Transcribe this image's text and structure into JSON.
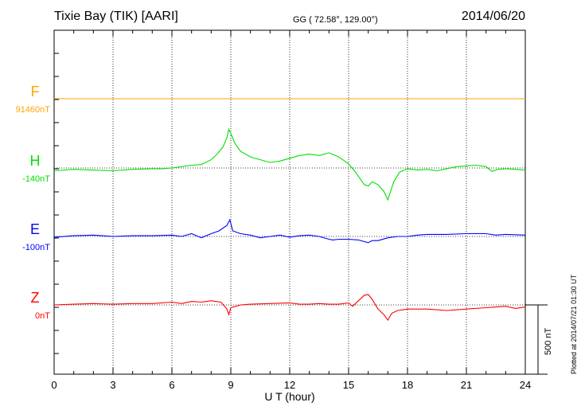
{
  "header": {
    "title": "Tixie Bay (TIK)  [AARI]",
    "coords": "GG ( 72.58°, 129.00°)",
    "date": "2014/06/20"
  },
  "side_note": "Plotted at 2014/07/21 01:30 UT",
  "scale_bar": {
    "label": "500 nT",
    "value": 500
  },
  "chart_data": {
    "type": "line",
    "title": "Tixie Bay (TIK)  [AARI]",
    "xlabel": "U T (hour)",
    "ylabel": "",
    "xlim": [
      0,
      24
    ],
    "xticks": [
      "0",
      "3",
      "6",
      "9",
      "12",
      "15",
      "18",
      "21",
      "24"
    ],
    "grid": true,
    "series": [
      {
        "name": "F",
        "baseline_label": "91460nT",
        "color": "#ffa500",
        "x": [
          0,
          24
        ],
        "y": [
          0,
          0
        ]
      },
      {
        "name": "H",
        "baseline_label": "-140nT",
        "color": "#00e000",
        "x": [
          0,
          1,
          2,
          3,
          4,
          5,
          5.5,
          6,
          6.5,
          7,
          7.5,
          8,
          8.3,
          8.6,
          8.8,
          8.9,
          9,
          9.2,
          9.5,
          10,
          10.5,
          11,
          11.5,
          12,
          12.5,
          13,
          13.5,
          14,
          14.5,
          15,
          15.3,
          15.6,
          15.8,
          16,
          16.2,
          16.5,
          16.8,
          17,
          17.3,
          17.6,
          18,
          18.5,
          19,
          19.5,
          20,
          20.5,
          21,
          21.5,
          22,
          22.3,
          22.6,
          23,
          23.5,
          24
        ],
        "y": [
          -20,
          -10,
          -15,
          -20,
          -10,
          -5,
          -5,
          0,
          10,
          20,
          25,
          60,
          100,
          150,
          220,
          280,
          250,
          180,
          120,
          80,
          60,
          40,
          50,
          70,
          90,
          100,
          90,
          110,
          80,
          30,
          -20,
          -80,
          -120,
          -130,
          -100,
          -120,
          -170,
          -230,
          -100,
          -30,
          -5,
          -15,
          -10,
          -20,
          -5,
          10,
          15,
          20,
          10,
          -25,
          -10,
          -5,
          -10,
          -15
        ]
      },
      {
        "name": "E",
        "baseline_label": "-100nT",
        "color": "#0000ff",
        "x": [
          0,
          1,
          2,
          3,
          4,
          5,
          6,
          6.5,
          7,
          7.5,
          8,
          8.4,
          8.8,
          8.95,
          9.1,
          9.5,
          10,
          10.5,
          11,
          11.5,
          12,
          12.5,
          13,
          13.5,
          14,
          14.2,
          14.5,
          15,
          15.5,
          16,
          16.2,
          16.5,
          17,
          17.5,
          18,
          18.5,
          19,
          20,
          21,
          22,
          22.5,
          23,
          24
        ],
        "y": [
          -5,
          5,
          10,
          0,
          5,
          5,
          10,
          0,
          20,
          -10,
          20,
          40,
          80,
          120,
          40,
          20,
          10,
          -10,
          0,
          10,
          -5,
          5,
          10,
          0,
          -20,
          -25,
          -20,
          -20,
          -25,
          -45,
          -30,
          -30,
          -10,
          0,
          0,
          10,
          15,
          15,
          20,
          20,
          10,
          15,
          10
        ]
      },
      {
        "name": "Z",
        "baseline_label": "0nT",
        "color": "#ff0000",
        "x": [
          0,
          1,
          2,
          3,
          4,
          5,
          6,
          6.5,
          7,
          7.5,
          8,
          8.5,
          8.8,
          8.9,
          9,
          9.5,
          10,
          11,
          12,
          12.5,
          13,
          13.5,
          14,
          14.5,
          15,
          15.2,
          15.5,
          15.8,
          16,
          16.2,
          16.5,
          16.8,
          17,
          17.2,
          17.5,
          18,
          19,
          20,
          21,
          22,
          22.5,
          23,
          23.5,
          24
        ],
        "y": [
          0,
          5,
          10,
          5,
          10,
          10,
          20,
          10,
          25,
          20,
          30,
          20,
          -30,
          -70,
          -20,
          0,
          5,
          10,
          15,
          5,
          5,
          10,
          5,
          5,
          15,
          -10,
          30,
          70,
          75,
          40,
          -30,
          -70,
          -110,
          -60,
          -40,
          -30,
          -30,
          -40,
          -30,
          -20,
          -15,
          -10,
          -25,
          -15
        ]
      }
    ]
  }
}
